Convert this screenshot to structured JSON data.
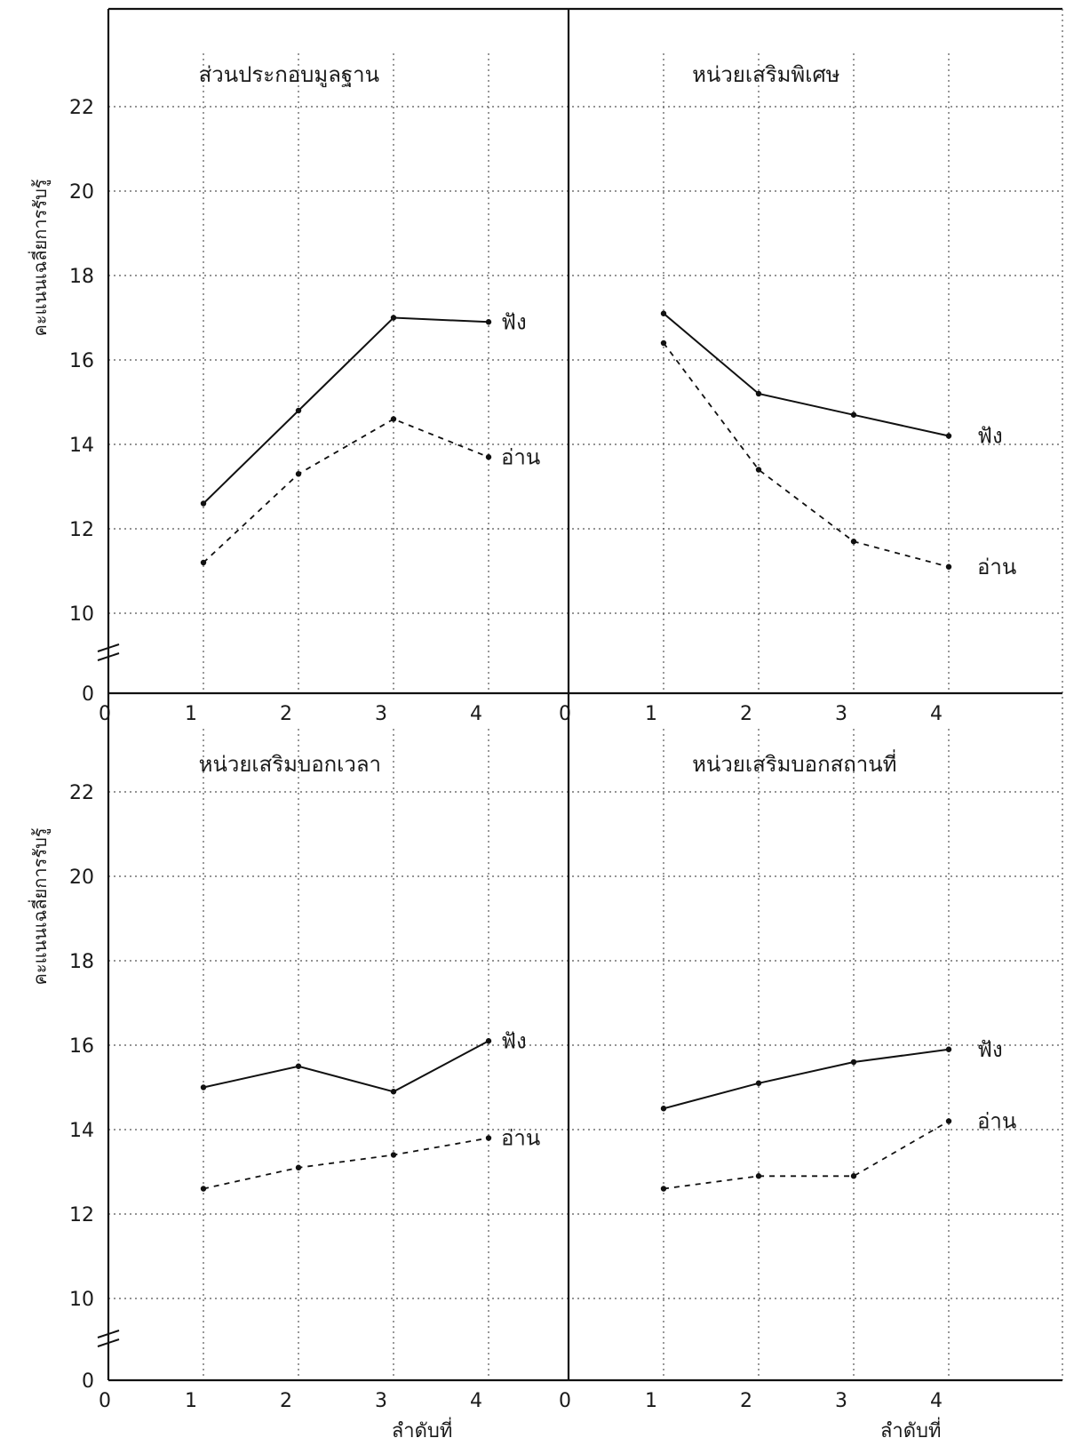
{
  "chart_data": {
    "type": "line",
    "ylabel_top": "คะแนนเฉลี่ยการรับรู้",
    "ylabel_bottom": "คะแนนเฉลี่ยการรับรู้",
    "xlabel": "ลำดับที่",
    "y_ticks": [
      "0",
      "10",
      "12",
      "14",
      "16",
      "18",
      "20",
      "22"
    ],
    "x_ticks": [
      "0",
      "1",
      "2",
      "3",
      "4"
    ],
    "ylim": [
      10,
      23
    ],
    "axis_break": true,
    "panels": [
      {
        "title": "ส่วนประกอบมูลฐาน",
        "x": [
          1,
          2,
          3,
          4
        ],
        "series": [
          {
            "name": "ฟัง",
            "style": "solid",
            "values": [
              12.6,
              14.8,
              17.0,
              16.9
            ]
          },
          {
            "name": "อ่าน",
            "style": "dashed",
            "values": [
              11.2,
              13.3,
              14.6,
              13.7
            ]
          }
        ]
      },
      {
        "title": "หน่วยเสริมพิเศษ",
        "x": [
          1,
          2,
          3,
          4
        ],
        "series": [
          {
            "name": "ฟัง",
            "style": "solid",
            "values": [
              17.1,
              15.2,
              14.7,
              14.2
            ]
          },
          {
            "name": "อ่าน",
            "style": "dashed",
            "values": [
              16.4,
              13.4,
              11.7,
              11.1
            ]
          }
        ]
      },
      {
        "title": "หน่วยเสริมบอกเวลา",
        "x": [
          1,
          2,
          3,
          4
        ],
        "series": [
          {
            "name": "ฟัง",
            "style": "solid",
            "values": [
              15.0,
              15.5,
              14.9,
              16.1
            ]
          },
          {
            "name": "อ่าน",
            "style": "dashed",
            "values": [
              12.6,
              13.1,
              13.4,
              13.8
            ]
          }
        ]
      },
      {
        "title": "หน่วยเสริมบอกสถานที่",
        "x": [
          1,
          2,
          3,
          4
        ],
        "series": [
          {
            "name": "ฟัง",
            "style": "solid",
            "values": [
              14.5,
              15.1,
              15.6,
              15.9
            ]
          },
          {
            "name": "อ่าน",
            "style": "dashed",
            "values": [
              12.6,
              12.9,
              12.9,
              14.2
            ]
          }
        ]
      }
    ]
  }
}
